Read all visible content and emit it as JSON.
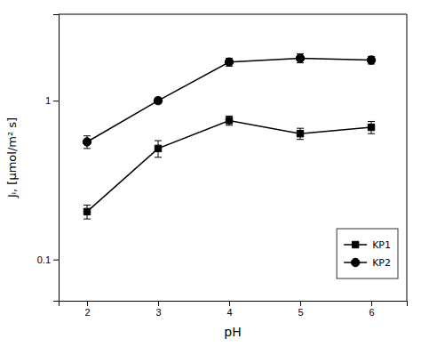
{
  "chart_data": {
    "type": "line",
    "x_label": "pH",
    "y_label": "Jᵢ, [μmol/m² s]",
    "x": [
      2,
      3,
      4,
      5,
      6
    ],
    "series": [
      {
        "name": "KP1",
        "color": "#000000",
        "marker": "square",
        "line_style": "solid",
        "values": [
          0.2,
          0.5,
          0.75,
          0.62,
          0.68
        ],
        "errors": [
          0.02,
          0.06,
          0.05,
          0.05,
          0.06
        ]
      },
      {
        "name": "KP2",
        "color": "#000000",
        "marker": "circle",
        "line_style": "solid",
        "values": [
          0.55,
          1.0,
          1.75,
          1.85,
          1.8
        ],
        "errors": [
          0.05,
          0.04,
          0.1,
          0.12,
          0.1
        ]
      }
    ],
    "xlim": [
      1.6,
      6.5
    ],
    "xticks": [
      2,
      3,
      4,
      5,
      6
    ],
    "ylim": [
      0.055,
      3.5
    ],
    "yticks": [
      0.1,
      1
    ],
    "log": "y",
    "grid": false,
    "legend": "lower right"
  }
}
